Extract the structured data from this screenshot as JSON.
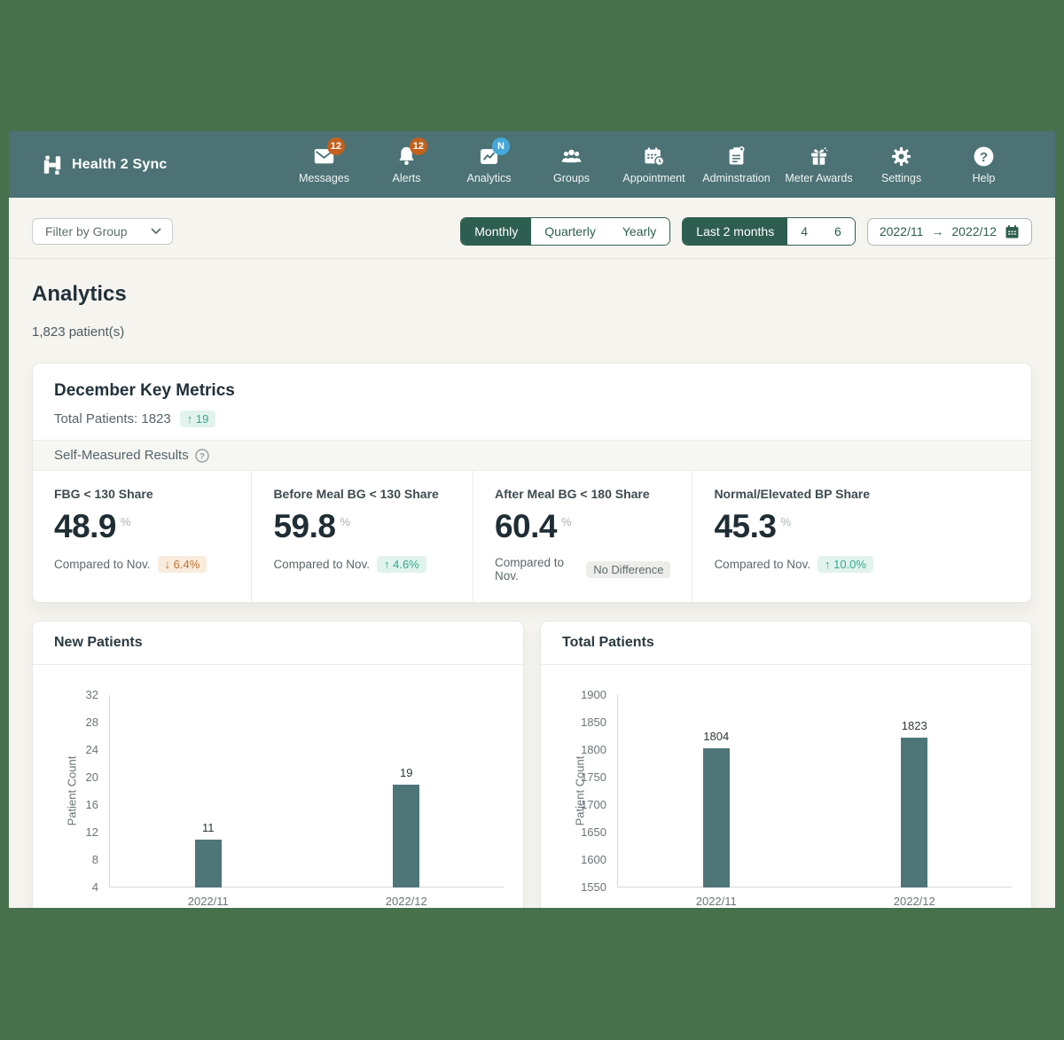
{
  "colors": {
    "backdrop": "#47704c",
    "navbar_bg": "#4c7275",
    "accent_green": "#2e5e50",
    "bar_color": "#4e7578",
    "badge_orange": "#c2611e",
    "badge_blue": "#45a8d8",
    "delta_up_text": "#35a78c",
    "delta_down_text": "#c0712c"
  },
  "navbar": {
    "logo_text": "Health 2 Sync",
    "items": [
      {
        "label": "Messages",
        "icon": "envelope-icon",
        "badge": "12",
        "badge_color": "#c2611e"
      },
      {
        "label": "Alerts",
        "icon": "bell-icon",
        "badge": "12",
        "badge_color": "#c2611e"
      },
      {
        "label": "Analytics",
        "icon": "analytics-chart-icon",
        "badge": "N",
        "badge_color": "#45a8d8"
      },
      {
        "label": "Groups",
        "icon": "groups-icon"
      },
      {
        "label": "Appointment",
        "icon": "calendar-clock-icon"
      },
      {
        "label": "Adminstration",
        "icon": "clipboard-plus-icon"
      },
      {
        "label": "Meter Awards",
        "icon": "gift-icon"
      },
      {
        "label": "Settings",
        "icon": "gear-icon"
      },
      {
        "label": "Help",
        "icon": "help-icon"
      }
    ]
  },
  "filter_bar": {
    "group_filter": {
      "label": "Filter by Group"
    },
    "period_toggle": {
      "options": [
        "Monthly",
        "Quarterly",
        "Yearly"
      ],
      "selected": "Monthly"
    },
    "range_toggle": {
      "options": [
        "Last 2 months",
        "4",
        "6"
      ],
      "selected": "Last 2 months"
    },
    "date_range": {
      "start": "2022/11",
      "arrow": "→",
      "end": "2022/12"
    }
  },
  "main": {
    "title": "Analytics",
    "patient_count": "1,823 patient(s)",
    "key_metrics": {
      "title": "December Key Metrics",
      "total_patients_label": "Total Patients: 1823",
      "total_patients_delta": "↑ 19",
      "section_label": "Self-Measured Results",
      "compare_label": "Compared to Nov.",
      "tiles": [
        {
          "label": "FBG < 130 Share",
          "value": "48.9",
          "unit": "%",
          "delta": "↓ 6.4%",
          "delta_type": "down"
        },
        {
          "label": "Before Meal BG < 130 Share",
          "value": "59.8",
          "unit": "%",
          "delta": "↑ 4.6%",
          "delta_type": "up"
        },
        {
          "label": "After Meal BG < 180 Share",
          "value": "60.4",
          "unit": "%",
          "delta": "No Difference",
          "delta_type": "neutral"
        },
        {
          "label": "Normal/Elevated BP Share",
          "value": "45.3",
          "unit": "%",
          "delta": "↑ 10.0%",
          "delta_type": "up"
        }
      ]
    }
  },
  "chart_data": [
    {
      "type": "bar",
      "title": "New Patients",
      "categories": [
        "2022/11",
        "2022/12"
      ],
      "values": [
        11,
        19
      ],
      "xlabel": "",
      "ylabel": "Patient Count",
      "ylim": [
        4,
        32
      ],
      "yticks": [
        32,
        28,
        24,
        20,
        16,
        12,
        8,
        4
      ],
      "grid": false,
      "bar_color": "#4e7578"
    },
    {
      "type": "bar",
      "title": "Total Patients",
      "categories": [
        "2022/11",
        "2022/12"
      ],
      "values": [
        1804,
        1823
      ],
      "xlabel": "",
      "ylabel": "Patient Count",
      "ylim": [
        1550,
        1900
      ],
      "yticks": [
        1900,
        1850,
        1800,
        1750,
        1700,
        1650,
        1600,
        1550
      ],
      "grid": false,
      "bar_color": "#4e7578"
    }
  ]
}
